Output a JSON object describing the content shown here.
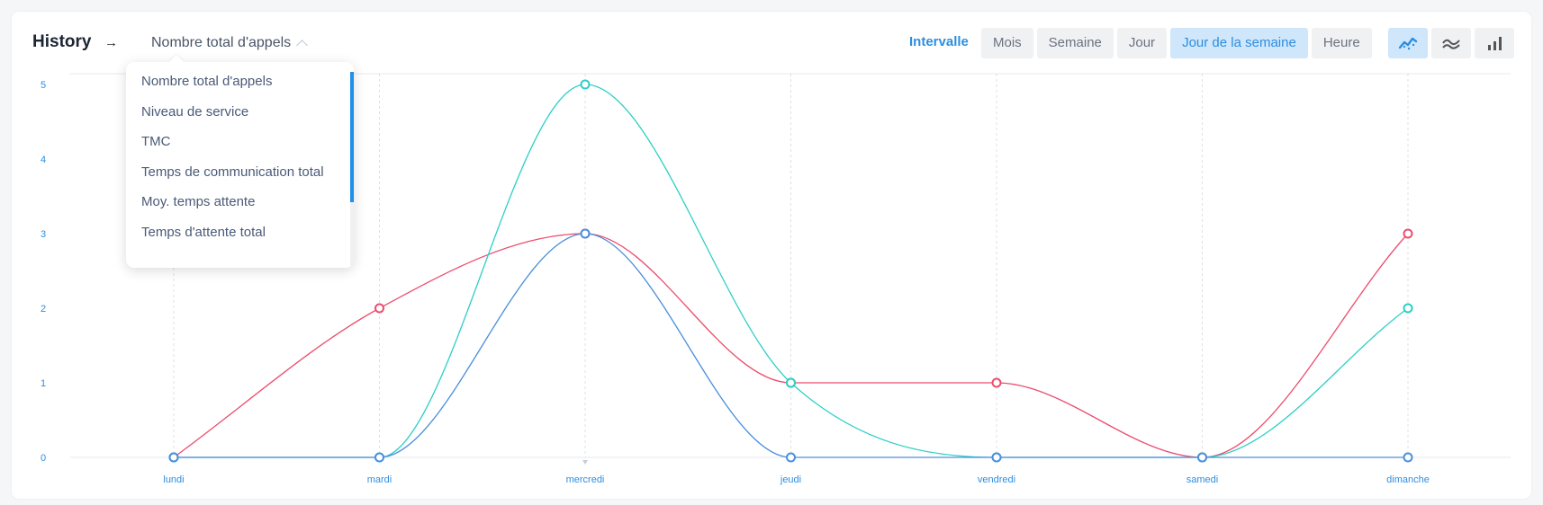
{
  "header": {
    "title": "History",
    "arrow": "→",
    "selected_metric": "Nombre total d'appels"
  },
  "interval": {
    "label": "Intervalle",
    "options": [
      "Mois",
      "Semaine",
      "Jour",
      "Jour de la semaine",
      "Heure"
    ],
    "active": "Jour de la semaine"
  },
  "chart_types": [
    {
      "name": "line-chart-icon",
      "active": true
    },
    {
      "name": "smooth-line-icon",
      "active": false
    },
    {
      "name": "bar-chart-icon",
      "active": false
    }
  ],
  "dropdown": {
    "items": [
      "Nombre total d'appels",
      "Niveau de service",
      "TMC",
      "Temps de communication total",
      "Moy. temps attente",
      "Temps d'attente total"
    ]
  },
  "colors": {
    "accent": "#2d8ee0",
    "series_pink": "#ec4d6e",
    "series_teal": "#2ccfc6",
    "series_blue": "#4a8fdc"
  },
  "chart_data": {
    "type": "line",
    "categories": [
      "lundi",
      "mardi",
      "mercredi",
      "jeudi",
      "vendredi",
      "samedi",
      "dimanche"
    ],
    "ylim": [
      0,
      5
    ],
    "yticks": [
      "0",
      "1",
      "2",
      "3",
      "4",
      "5"
    ],
    "series": [
      {
        "color": "#ec4d6e",
        "values": [
          0,
          2,
          3,
          1,
          1,
          0,
          3
        ]
      },
      {
        "color": "#2ccfc6",
        "values": [
          0,
          0,
          5,
          1,
          0,
          0,
          2
        ]
      },
      {
        "color": "#4a8fdc",
        "values": [
          0,
          0,
          3,
          0,
          0,
          0,
          0
        ]
      }
    ]
  }
}
